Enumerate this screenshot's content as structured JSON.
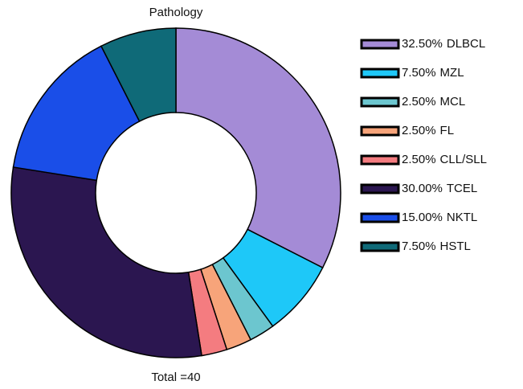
{
  "chart_data": {
    "type": "donut",
    "title": "Pathology",
    "annotation": "Total =40",
    "categories": [
      "DLBCL",
      "MZL",
      "MCL",
      "FL",
      "CLL/SLL",
      "TCEL",
      "NKTL",
      "HSTL"
    ],
    "values": [
      32.5,
      7.5,
      2.5,
      2.5,
      2.5,
      30,
      15,
      7.5
    ],
    "value_labels": [
      "32.50%",
      "7.50%",
      "2.50%",
      "2.50%",
      "2.50%",
      "30.00%",
      "15.00%",
      "7.50%"
    ],
    "colors": [
      "#a48bd6",
      "#1ec8f8",
      "#6cc6cf",
      "#f7a47a",
      "#f47c80",
      "#2b1650",
      "#1a4ee8",
      "#0f6a78"
    ],
    "legend": "right"
  }
}
